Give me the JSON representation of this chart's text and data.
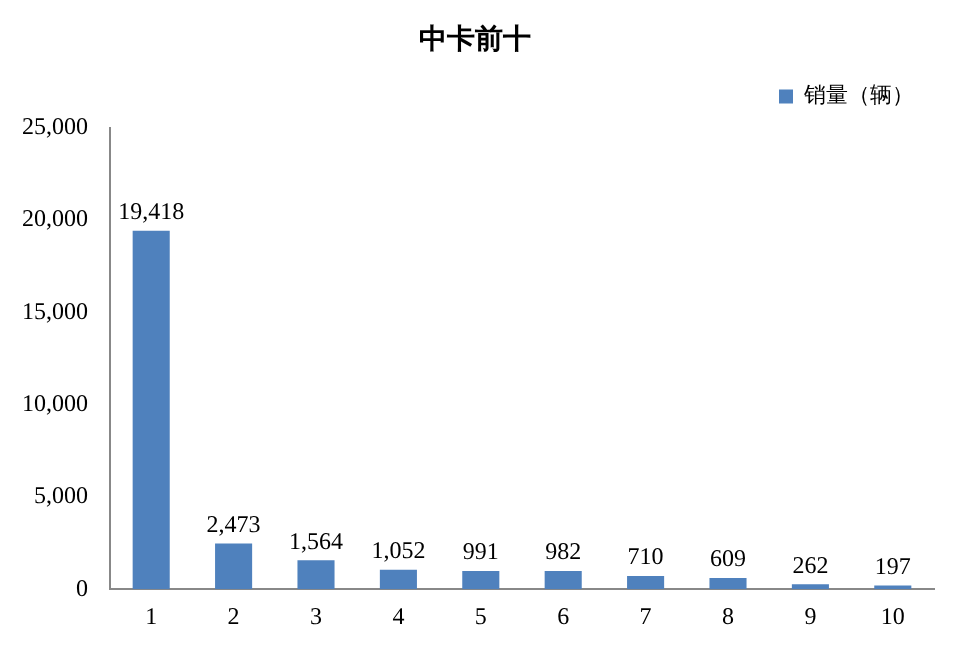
{
  "chart_data": {
    "type": "bar",
    "title": "中卡前十",
    "categories": [
      "1",
      "2",
      "3",
      "4",
      "5",
      "6",
      "7",
      "8",
      "9",
      "10"
    ],
    "series": [
      {
        "name": "销量（辆）",
        "color": "#4f81bd",
        "values": [
          19418,
          2473,
          1564,
          1052,
          991,
          982,
          710,
          609,
          262,
          197
        ],
        "value_labels": [
          "19,418",
          "2,473",
          "1,564",
          "1,052",
          "991",
          "982",
          "710",
          "609",
          "262",
          "197"
        ]
      }
    ],
    "ylim": [
      0,
      25000
    ],
    "yticks": [
      0,
      {
        "value": 5000,
        "label": "5,000"
      },
      {
        "value": 10000,
        "label": "10,000"
      },
      {
        "value": 15000,
        "label": "15,000"
      },
      {
        "value": 20000,
        "label": "20,000"
      },
      {
        "value": 25000,
        "label": "25,000"
      }
    ],
    "grid": false,
    "legend": "top right"
  }
}
